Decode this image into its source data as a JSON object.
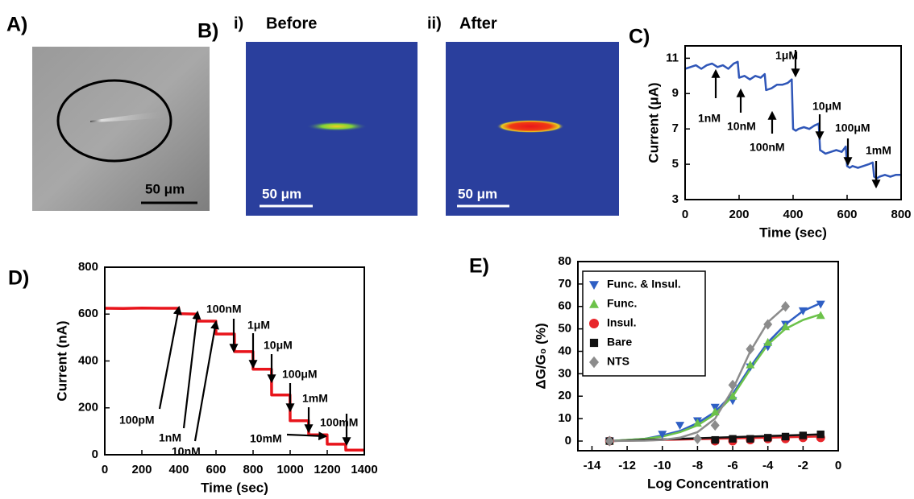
{
  "panels": {
    "a": {
      "label": "A)",
      "scale_bar": "50 μm"
    },
    "b": {
      "label": "B)",
      "before_index": "i)",
      "before": "Before",
      "after_index": "ii)",
      "after": "After",
      "scale_bar_before": "50 μm",
      "scale_bar_after": "50 μm"
    }
  },
  "chart_data": [
    {
      "panel_label": "C)",
      "type": "line",
      "x_label": "Time (sec)",
      "y_label": "Current (μA)",
      "xlim": [
        0,
        800
      ],
      "ylim": [
        3,
        11.7
      ],
      "xticks": [
        0,
        200,
        400,
        600,
        800
      ],
      "yticks": [
        3,
        5,
        7,
        9,
        11
      ],
      "series": [
        {
          "color": "#2f56b8",
          "x": [
            0,
            20,
            40,
            60,
            80,
            100,
            120,
            140,
            160,
            180,
            195,
            200,
            220,
            240,
            260,
            280,
            295,
            300,
            320,
            340,
            360,
            380,
            395,
            400,
            410,
            420,
            440,
            460,
            480,
            495,
            500,
            510,
            520,
            540,
            560,
            580,
            595,
            600,
            610,
            620,
            640,
            660,
            680,
            695,
            700,
            710,
            720,
            740,
            760,
            780,
            800
          ],
          "values": [
            10.4,
            10.5,
            10.6,
            10.4,
            10.6,
            10.7,
            10.5,
            10.6,
            10.4,
            10.7,
            10.8,
            9.9,
            10.0,
            9.8,
            10.0,
            9.9,
            10.1,
            9.2,
            9.3,
            9.5,
            9.5,
            9.6,
            9.8,
            7.0,
            6.9,
            7.0,
            7.1,
            7.0,
            7.2,
            7.3,
            5.8,
            5.7,
            5.6,
            5.7,
            5.8,
            5.7,
            6.0,
            4.9,
            4.8,
            4.9,
            4.8,
            4.9,
            5.0,
            5.1,
            4.3,
            4.2,
            4.3,
            4.4,
            4.3,
            4.4,
            4.4
          ]
        }
      ],
      "annotations": [
        "1nM",
        "10nM",
        "100nM",
        "1μM",
        "10μM",
        "100μM",
        "1mM"
      ]
    },
    {
      "panel_label": "D)",
      "type": "line",
      "x_label": "Time (sec)",
      "y_label": "Current (nA)",
      "xlim": [
        0,
        1400
      ],
      "ylim": [
        0,
        800
      ],
      "xticks": [
        0,
        200,
        400,
        600,
        800,
        1000,
        1200,
        1400
      ],
      "yticks": [
        0,
        200,
        400,
        600,
        800
      ],
      "series": [
        {
          "color": "#e8141b",
          "x": [
            0,
            100,
            200,
            300,
            399,
            400,
            499,
            500,
            599,
            600,
            699,
            700,
            799,
            800,
            899,
            900,
            999,
            1000,
            1099,
            1100,
            1199,
            1200,
            1299,
            1300,
            1400
          ],
          "values": [
            625,
            624,
            626,
            625,
            625,
            602,
            600,
            570,
            570,
            515,
            515,
            440,
            440,
            365,
            365,
            255,
            255,
            145,
            145,
            85,
            85,
            45,
            45,
            20,
            20
          ]
        }
      ],
      "annotations": [
        "100pM",
        "1nM",
        "10nM",
        "100nM",
        "1μM",
        "10μM",
        "100μM",
        "1mM",
        "10mM",
        "100mM"
      ]
    },
    {
      "panel_label": "E)",
      "type": "scatter",
      "x_label": "Log Concentration",
      "y_label": "ΔG/G₀ (%)",
      "xlim": [
        -14.8,
        0
      ],
      "ylim": [
        -4.3,
        80
      ],
      "xticks": [
        -14,
        -12,
        -10,
        -8,
        -6,
        -4,
        -2,
        0
      ],
      "yticks": [
        0,
        10,
        20,
        30,
        40,
        50,
        60,
        70,
        80
      ],
      "legend": "upper left",
      "series": [
        {
          "name": "Func. & Insul.",
          "color": "#2f5fc4",
          "marker": "triangle-down",
          "x": [
            -13,
            -10,
            -9,
            -8,
            -7,
            -6,
            -5,
            -4,
            -3,
            -2,
            -1
          ],
          "values": [
            0,
            3,
            7,
            9,
            15,
            18,
            33,
            42,
            52,
            58,
            61
          ],
          "fit": {
            "x": [
              -13,
              -12,
              -11,
              -10,
              -9,
              -8,
              -7,
              -6,
              -5,
              -4,
              -3,
              -2,
              -1
            ],
            "values": [
              0,
              0.5,
              1,
              2.5,
              4.5,
              8,
              13,
              21,
              33,
              44,
              52,
              58,
              61.5
            ]
          }
        },
        {
          "name": "Func.",
          "color": "#6cc24a",
          "marker": "triangle-up",
          "x": [
            -13,
            -8,
            -7,
            -6,
            -5,
            -4,
            -3,
            -1
          ],
          "values": [
            0,
            8,
            13,
            20,
            34,
            44,
            51,
            56
          ],
          "fit": {
            "x": [
              -13,
              -12,
              -11,
              -10,
              -9,
              -8,
              -7,
              -6,
              -5,
              -4,
              -3,
              -2,
              -1
            ],
            "values": [
              0,
              0.5,
              1,
              2,
              4,
              7,
              12,
              20,
              32,
              43,
              50,
              54,
              56.5
            ]
          }
        },
        {
          "name": "Insul.",
          "color": "#e8262b",
          "marker": "circle",
          "x": [
            -13,
            -7,
            -6,
            -5,
            -4,
            -3,
            -2,
            -1
          ],
          "values": [
            0,
            0,
            0,
            0.5,
            1,
            1,
            1.5,
            1.5
          ],
          "fit": {
            "x": [
              -13,
              -1
            ],
            "values": [
              0,
              2
            ]
          }
        },
        {
          "name": "Bare",
          "color": "#111111",
          "marker": "square",
          "x": [
            -13,
            -7,
            -6,
            -5,
            -4,
            -3,
            -2,
            -1
          ],
          "values": [
            0,
            0.5,
            1,
            1,
            1.5,
            2,
            2.5,
            3
          ],
          "fit": {
            "x": [
              -13,
              -1
            ],
            "values": [
              0,
              3
            ]
          }
        },
        {
          "name": "NTS",
          "color": "#8c8c8c",
          "marker": "diamond",
          "x": [
            -13,
            -8,
            -7,
            -6,
            -5,
            -4,
            -3
          ],
          "values": [
            0,
            1,
            7,
            25,
            41,
            52,
            60
          ],
          "fit": {
            "x": [
              -13,
              -11,
              -10,
              -9,
              -8,
              -7,
              -6,
              -5,
              -4,
              -3
            ],
            "values": [
              0,
              0.2,
              0.5,
              1.5,
              4,
              10,
              23,
              40,
              53,
              60
            ]
          }
        }
      ]
    }
  ]
}
